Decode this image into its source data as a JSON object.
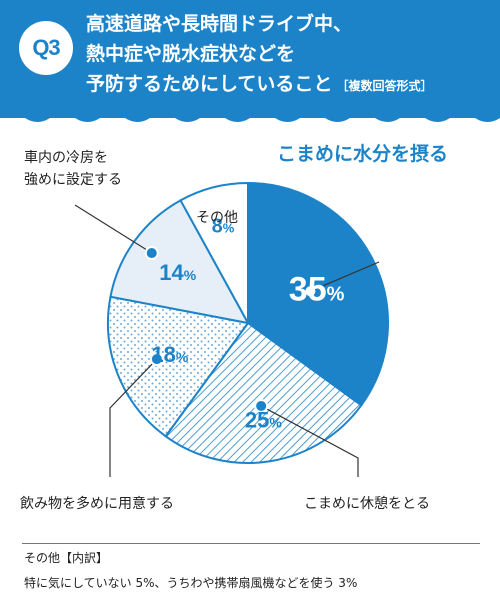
{
  "question": {
    "badge": "Q3",
    "line1": "高速道路や長時間ドライブ中、",
    "line2": "熱中症や脱水症状などを",
    "line3": "予防するためにしていること",
    "tag": "［複数回答形式］"
  },
  "colors": {
    "brand": "#1d83c8",
    "light_fill": "#e6eff8",
    "dot_fill": "#6ea8d8",
    "hatch": "#1d83c8"
  },
  "chart_data": {
    "type": "pie",
    "title": "",
    "unit": "%",
    "slices": [
      {
        "label": "こまめに水分を摂る",
        "value": 35,
        "value_text": "35",
        "fill": "solid"
      },
      {
        "label": "こまめに休憩をとる",
        "value": 25,
        "value_text": "25",
        "fill": "hatch"
      },
      {
        "label": "飲み物を多めに用意する",
        "value": 18,
        "value_text": "18",
        "fill": "dots"
      },
      {
        "label": "車内の冷房を\n強めに設定する",
        "value": 14,
        "value_text": "14",
        "fill": "light"
      },
      {
        "label": "その他",
        "value": 8,
        "value_text": "8",
        "fill": "white"
      }
    ]
  },
  "footnote": {
    "title": "その他【内訳】",
    "text": "特に気にしていない 5%、うちわや携帯扇風機などを使う 3%"
  }
}
